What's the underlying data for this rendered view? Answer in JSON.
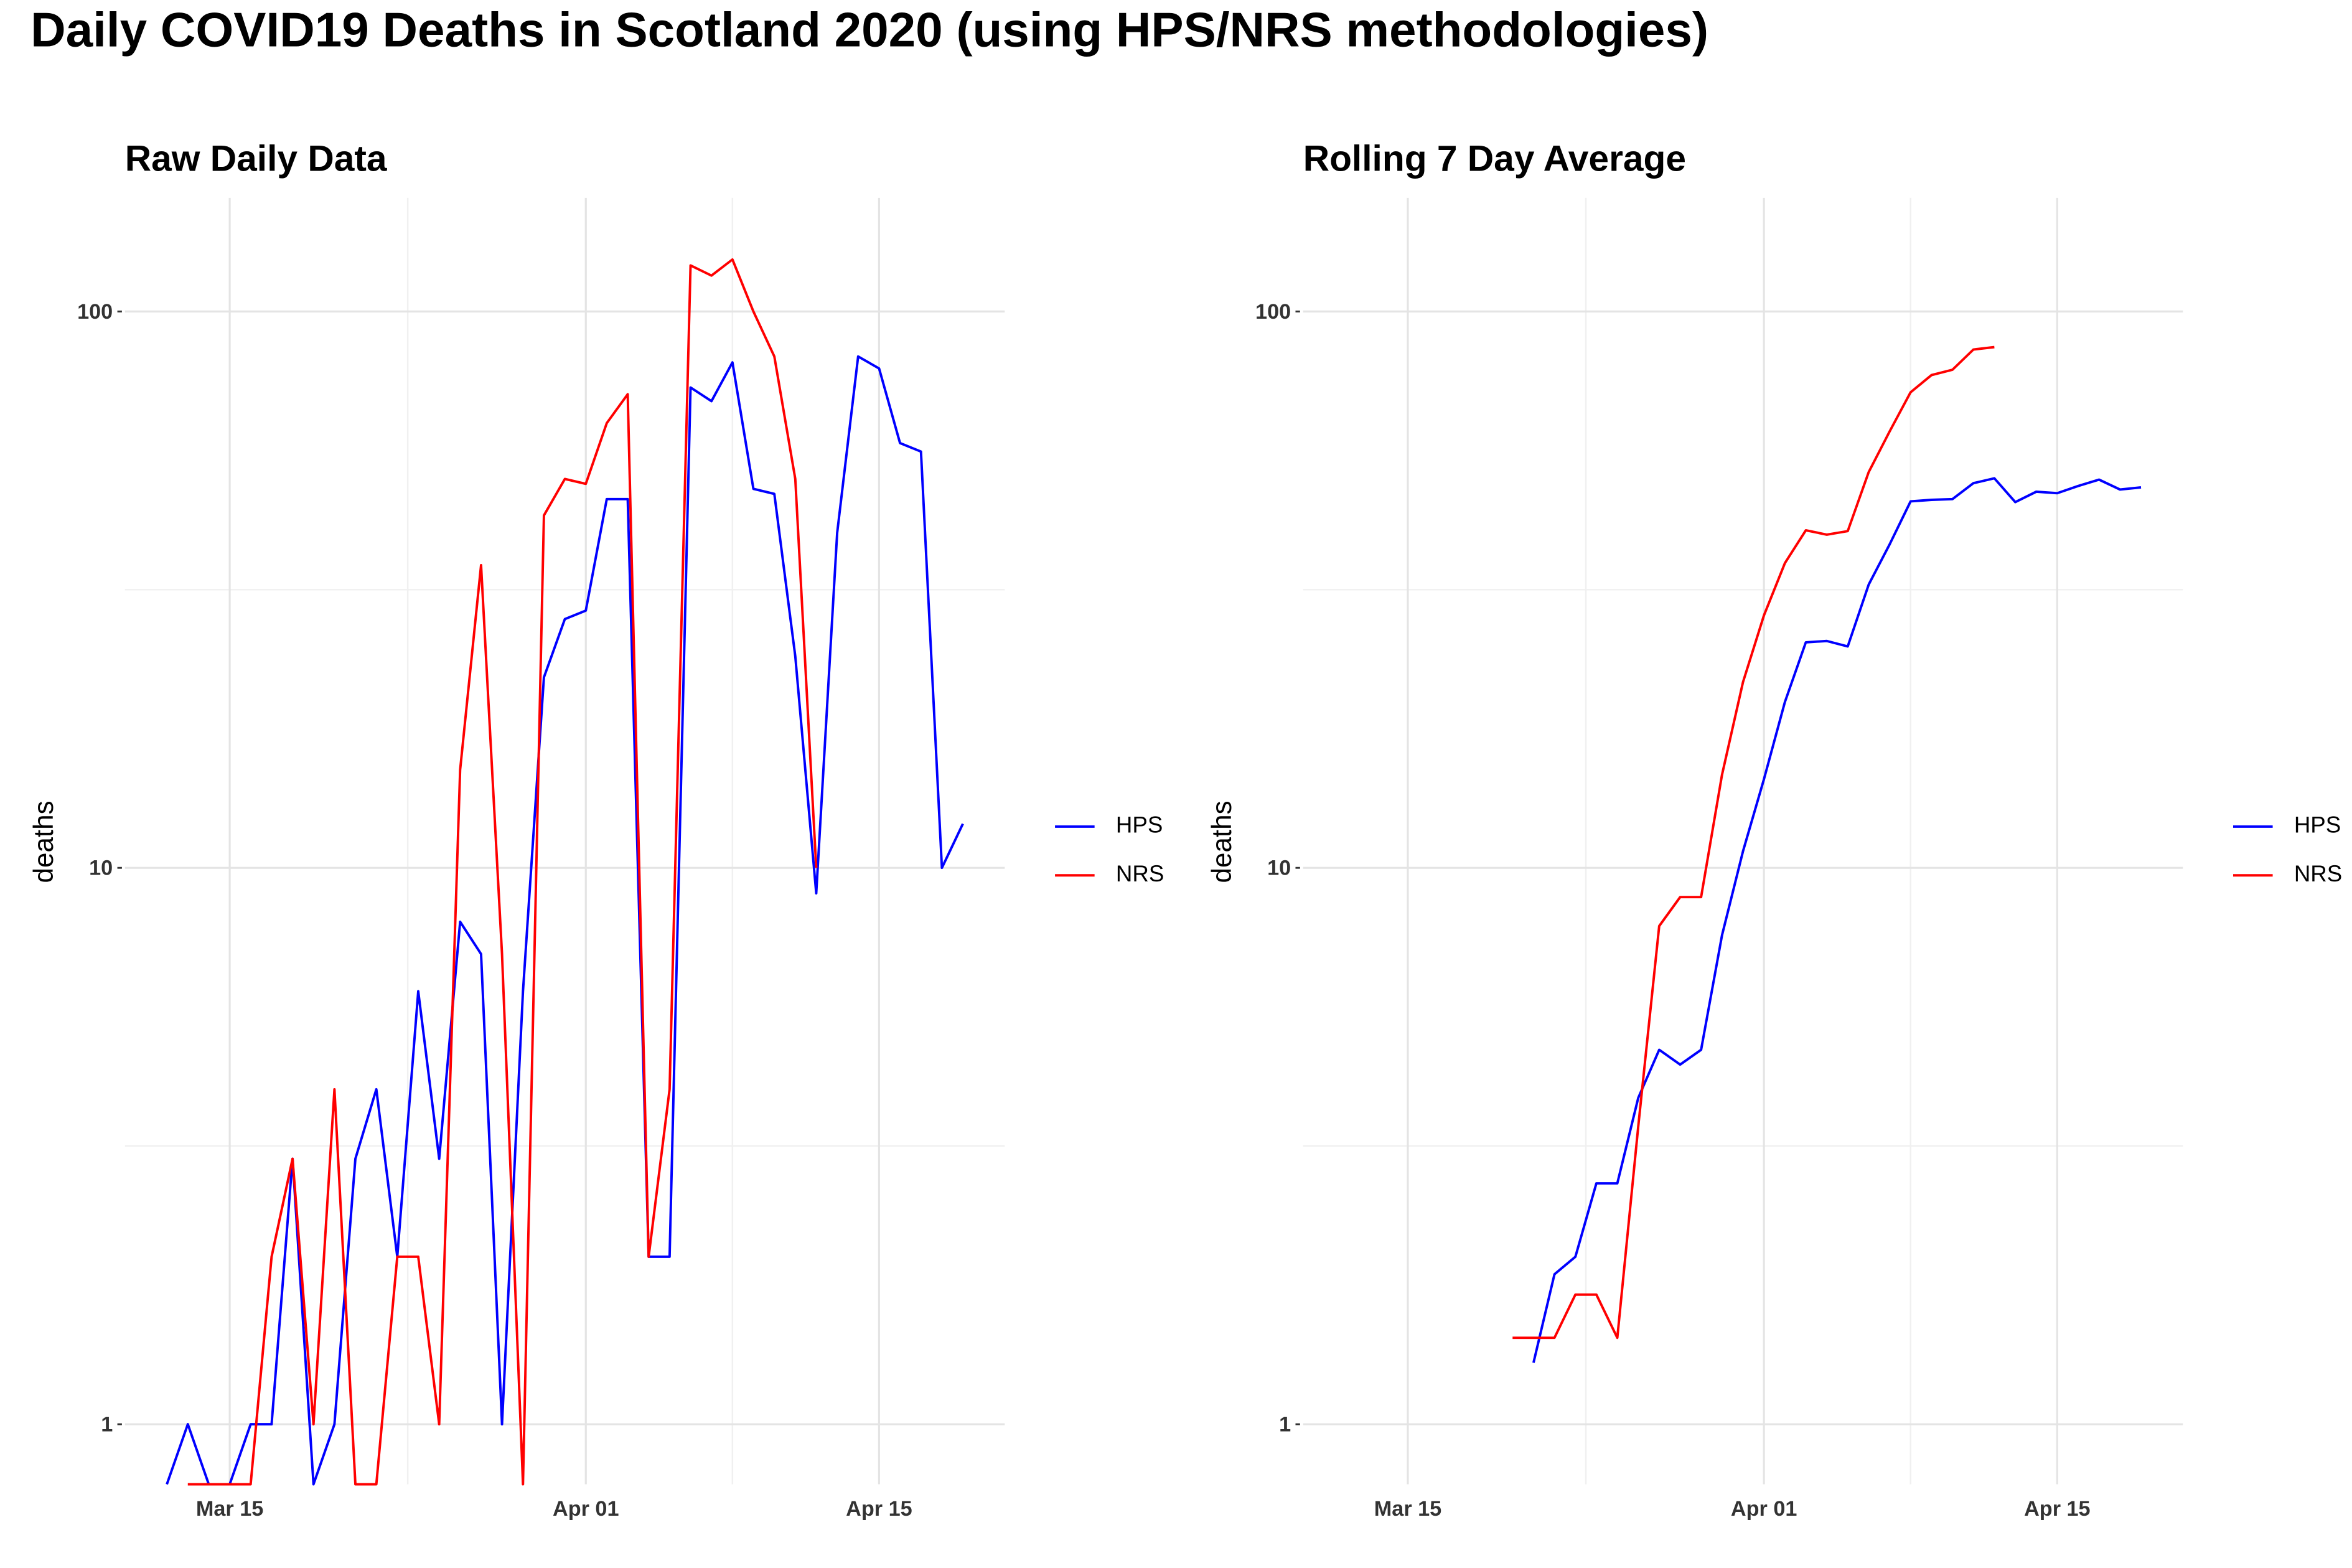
{
  "title": "Daily COVID19 Deaths in Scotland 2020 (using HPS/NRS methodologies)",
  "chart_data": [
    {
      "type": "line",
      "title": "Raw Daily Data",
      "y_label": "deaths",
      "log_y": true,
      "grid": true,
      "x": [
        "Mar 12",
        "Mar 13",
        "Mar 14",
        "Mar 15",
        "Mar 16",
        "Mar 17",
        "Mar 18",
        "Mar 19",
        "Mar 20",
        "Mar 21",
        "Mar 22",
        "Mar 23",
        "Mar 24",
        "Mar 25",
        "Mar 26",
        "Mar 27",
        "Mar 28",
        "Mar 29",
        "Mar 30",
        "Mar 31",
        "Apr 01",
        "Apr 02",
        "Apr 03",
        "Apr 04",
        "Apr 05",
        "Apr 06",
        "Apr 07",
        "Apr 08",
        "Apr 09",
        "Apr 10",
        "Apr 11",
        "Apr 12",
        "Apr 13",
        "Apr 14",
        "Apr 15",
        "Apr 16",
        "Apr 17",
        "Apr 18",
        "Apr 19"
      ],
      "series": [
        {
          "name": "HPS",
          "color": "#0000ff",
          "values": [
            0,
            1,
            0,
            0,
            1,
            1,
            3,
            0,
            1,
            3,
            4,
            2,
            6,
            3,
            8,
            7,
            1,
            6,
            22,
            28,
            29,
            46,
            46,
            2,
            2,
            73,
            69,
            81,
            48,
            47,
            24,
            9,
            40,
            83,
            79,
            58,
            56,
            10,
            12
          ]
        },
        {
          "name": "NRS",
          "color": "#ff0000",
          "values": [
            null,
            0,
            0,
            0,
            0,
            2,
            3,
            1,
            4,
            0,
            0,
            2,
            2,
            1,
            15,
            35,
            7,
            0,
            43,
            50,
            49,
            63,
            71,
            2,
            4,
            121,
            116,
            124,
            100,
            83,
            50,
            10,
            null,
            null,
            null,
            null,
            null,
            null,
            null
          ]
        }
      ],
      "xlim": [
        "Mar 10",
        "Apr 21"
      ],
      "xticks": [
        "Mar 15",
        "Apr 01",
        "Apr 15"
      ],
      "ylim": [
        0.78,
        160
      ],
      "yticks": [
        1,
        10,
        100
      ]
    },
    {
      "type": "line",
      "title": "Rolling 7 Day Average",
      "y_label": "deaths",
      "log_y": true,
      "grid": true,
      "x": [
        "Mar 20",
        "Mar 21",
        "Mar 22",
        "Mar 23",
        "Mar 24",
        "Mar 25",
        "Mar 26",
        "Mar 27",
        "Mar 28",
        "Mar 29",
        "Mar 30",
        "Mar 31",
        "Apr 01",
        "Apr 02",
        "Apr 03",
        "Apr 04",
        "Apr 05",
        "Apr 06",
        "Apr 07",
        "Apr 08",
        "Apr 09",
        "Apr 10",
        "Apr 11",
        "Apr 12",
        "Apr 13",
        "Apr 14",
        "Apr 15",
        "Apr 16",
        "Apr 17",
        "Apr 18",
        "Apr 19"
      ],
      "series": [
        {
          "name": "HPS",
          "color": "#0000ff",
          "values": [
            null,
            1.29,
            1.86,
            2.0,
            2.71,
            2.71,
            3.86,
            4.71,
            4.43,
            4.71,
            7.57,
            10.71,
            14.43,
            19.86,
            25.43,
            25.57,
            25.0,
            32.29,
            38.14,
            45.57,
            45.86,
            46.0,
            49.14,
            50.14,
            45.43,
            47.43,
            47.14,
            48.57,
            49.86,
            47.86,
            48.29
          ]
        },
        {
          "name": "NRS",
          "color": "#ff0000",
          "values": [
            1.43,
            1.43,
            1.43,
            1.71,
            1.71,
            1.43,
            3.43,
            7.86,
            8.86,
            8.86,
            14.71,
            21.57,
            28.43,
            35.29,
            40.43,
            39.71,
            40.29,
            51.43,
            60.86,
            71.57,
            76.86,
            78.57,
            85.43,
            86.29,
            null,
            null,
            null,
            null,
            null,
            null,
            null
          ]
        }
      ],
      "xlim": [
        "Mar 10",
        "Apr 21"
      ],
      "xticks": [
        "Mar 15",
        "Apr 01",
        "Apr 15"
      ],
      "ylim": [
        0.78,
        160
      ],
      "yticks": [
        1,
        10,
        100
      ]
    }
  ]
}
